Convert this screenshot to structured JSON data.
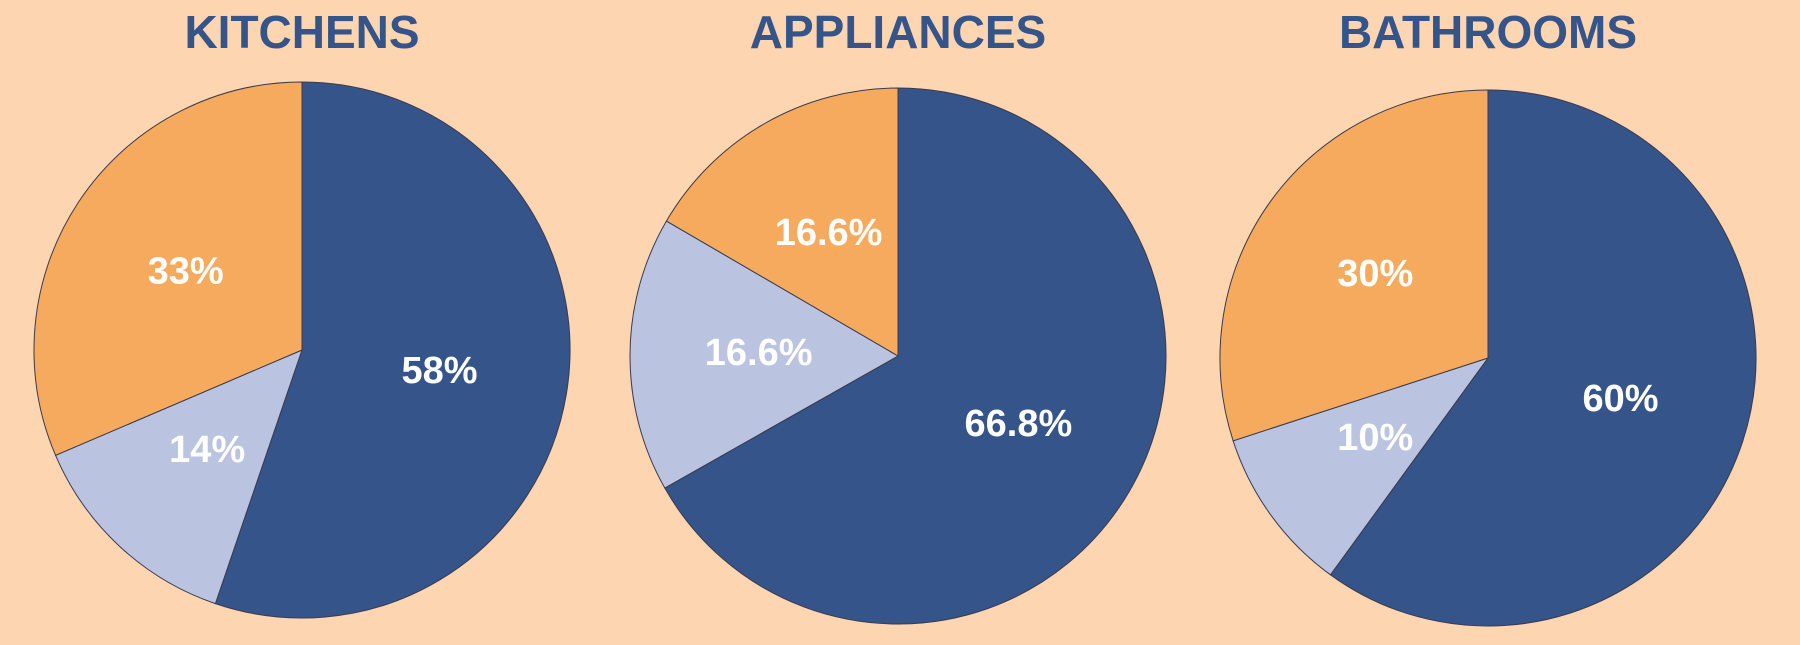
{
  "chart_data": [
    {
      "type": "pie",
      "title": "KITCHENS",
      "values": [
        58,
        14,
        33
      ],
      "value_labels": [
        "58%",
        "14%",
        "33%"
      ],
      "colors": [
        "#34548a",
        "#bac3df",
        "#f5aa5d"
      ]
    },
    {
      "type": "pie",
      "title": "APPLIANCES",
      "values": [
        66.8,
        16.6,
        16.6
      ],
      "value_labels": [
        "66.8%",
        "16.6%",
        "16.6%"
      ],
      "colors": [
        "#34548a",
        "#bac3df",
        "#f5aa5d"
      ]
    },
    {
      "type": "pie",
      "title": "BATHROOMS",
      "values": [
        60,
        10,
        30
      ],
      "value_labels": [
        "60%",
        "10%",
        "30%"
      ],
      "colors": [
        "#34548a",
        "#bac3df",
        "#f5aa5d"
      ]
    }
  ]
}
